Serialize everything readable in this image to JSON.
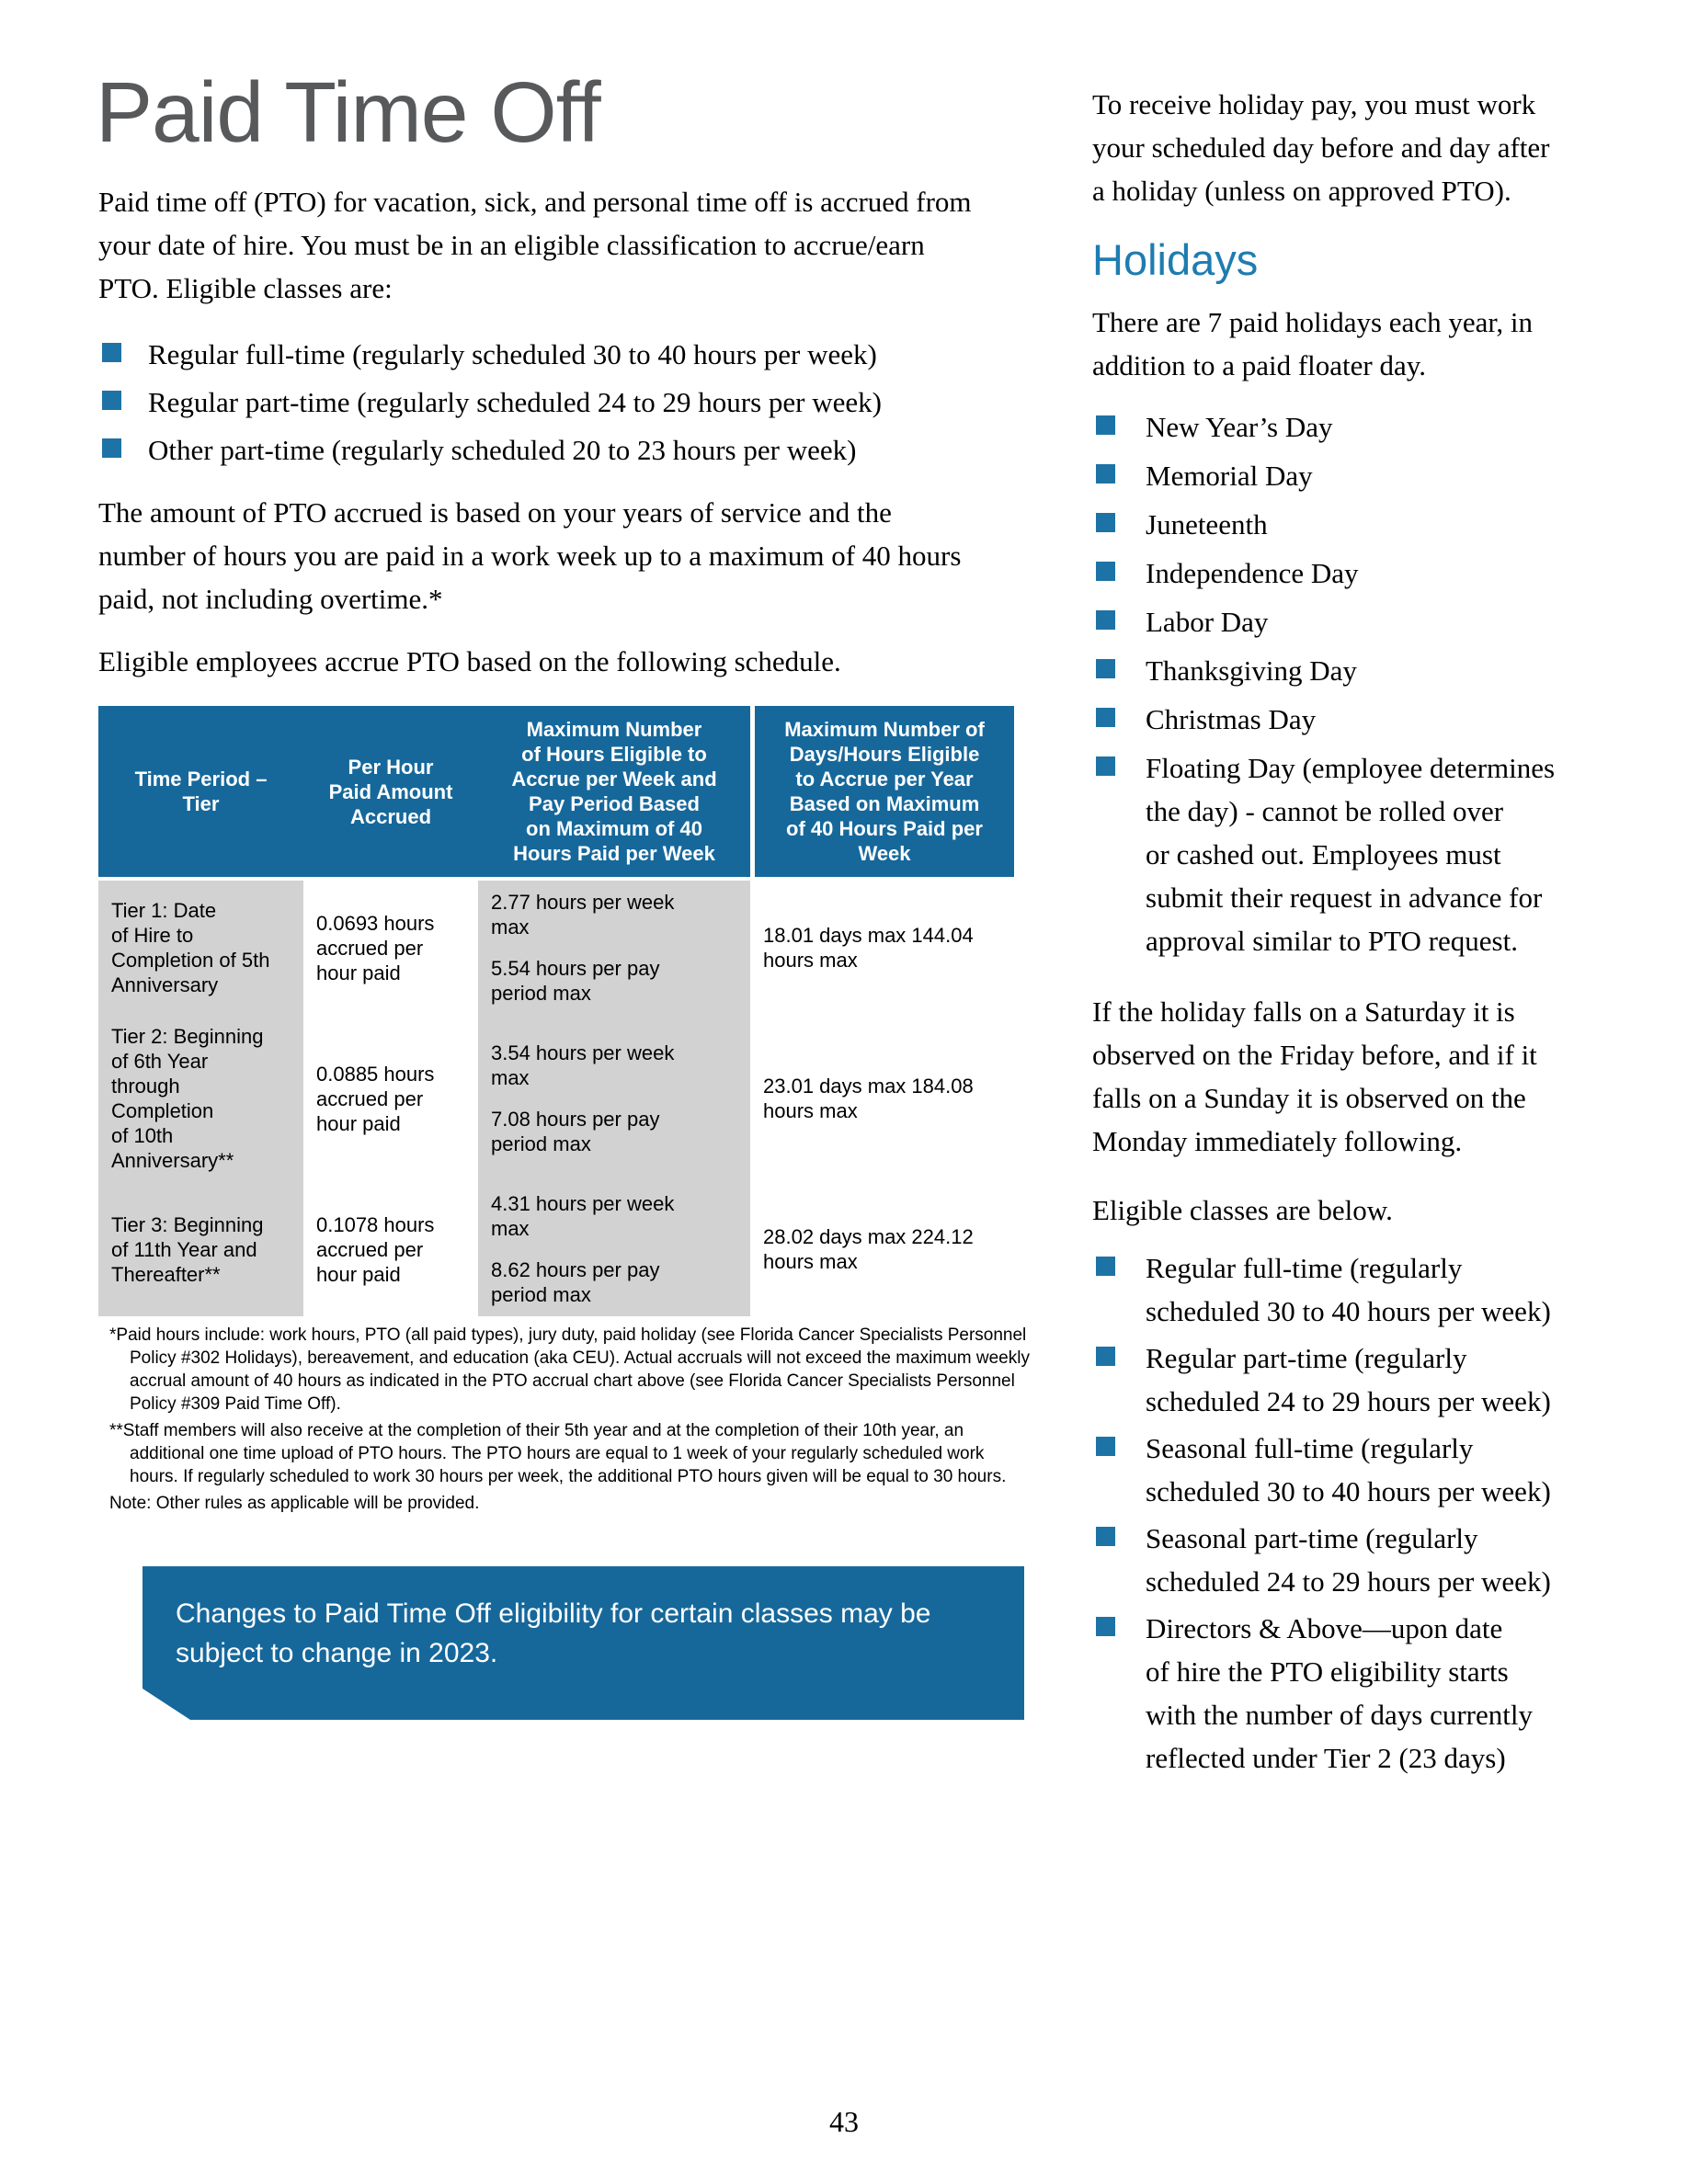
{
  "colors": {
    "accent_blue": "#16689b",
    "bullet_blue": "#1d73a6",
    "heading_blue": "#1e7cb0",
    "title_gray": "#58595b",
    "cell_gray": "#d2d2d2"
  },
  "page": {
    "number": "43"
  },
  "left": {
    "title": "Paid Time Off",
    "intro": "Paid time off (PTO) for vacation, sick, and personal time off is accrued from\nyour date of hire. You must be in an eligible classification to accrue/earn\nPTO. Eligible classes are:",
    "bullets": [
      {
        "text": "Regular full-time (regularly scheduled 30 to 40 hours per week)"
      },
      {
        "text": "Regular part-time (regularly scheduled 24 to 29 hours per week)"
      },
      {
        "text": "Other part-time (regularly scheduled 20 to 23 hours per week)"
      }
    ],
    "para2": "The amount of PTO accrued is based on your years of service and the\nnumber of hours you are paid in a work week up to a maximum of 40 hours\npaid, not including overtime.*",
    "para3": "Eligible employees accrue PTO based on the following schedule.",
    "table": {
      "headers": [
        "Time Period –\nTier",
        "Per Hour\nPaid Amount\nAccrued",
        "Maximum Number\nof Hours Eligible to\nAccrue per Week and\nPay Period Based\non Maximum of 40\nHours Paid per Week",
        "Maximum Number of\nDays/Hours Eligible\nto Accrue per Year\nBased on Maximum\nof 40 Hours Paid per\nWeek"
      ],
      "rows": [
        {
          "tier": "Tier 1: Date\nof Hire to\nCompletion of 5th\nAnniversary",
          "accrual": "0.0693 hours\naccrued per\nhour paid",
          "week_max": "2.77 hours per week\nmax",
          "period_max": "5.54 hours per pay\nperiod max",
          "year_max": "18.01 days max 144.04\nhours max"
        },
        {
          "tier": "Tier 2: Beginning\nof 6th Year\nthrough\nCompletion\nof 10th\nAnniversary**",
          "accrual": "0.0885 hours\naccrued per\nhour paid",
          "week_max": "3.54 hours per week\nmax",
          "period_max": "7.08 hours per pay\nperiod max",
          "year_max": "23.01 days max 184.08\nhours max"
        },
        {
          "tier": "Tier 3: Beginning\nof 11th Year and\nThereafter**",
          "accrual": "0.1078 hours\naccrued per\nhour paid",
          "week_max": "4.31 hours per week\nmax",
          "period_max": "8.62 hours per pay\nperiod max",
          "year_max": "28.02 days max 224.12\nhours max"
        }
      ]
    },
    "footnotes": [
      {
        "text": "*Paid hours include: work hours, PTO (all paid types), jury duty, paid holiday (see Florida Cancer Specialists Personnel\nPolicy #302 Holidays), bereavement, and education (aka CEU). Actual accruals will not exceed the maximum weekly\naccrual amount of 40 hours as indicated in the PTO accrual chart above (see Florida Cancer Specialists Personnel\nPolicy #309 Paid Time Off)."
      },
      {
        "text": "**Staff members will also receive at the completion of their 5th year and at the completion of their 10th year, an\nadditional one time upload of PTO hours. The PTO hours are equal to 1 week of your regularly scheduled work\nhours. If regularly scheduled to work 30 hours per week, the additional PTO hours given will be equal to 30 hours."
      },
      {
        "text": "Note: Other rules as applicable will be provided."
      }
    ],
    "callout": "Changes to Paid Time Off eligibility for certain classes may be\nsubject to change in 2023."
  },
  "right": {
    "intro": "To receive holiday pay, you must work\nyour scheduled day before and day after\na holiday (unless on approved PTO).",
    "holidays_heading": "Holidays",
    "holidays_intro": "There are 7 paid holidays each year, in\naddition to a paid floater day.",
    "holidays": [
      {
        "text": "New Year’s Day"
      },
      {
        "text": "Memorial Day"
      },
      {
        "text": "Juneteenth"
      },
      {
        "text": "Independence Day"
      },
      {
        "text": "Labor Day"
      },
      {
        "text": "Thanksgiving Day"
      },
      {
        "text": "Christmas Day"
      },
      {
        "text": "Floating Day (employee determines\nthe day) - cannot be rolled over\nor cashed out. Employees must\nsubmit their request in advance for\napproval similar to PTO request."
      }
    ],
    "observed_para": "If the holiday falls on a Saturday it is\nobserved on the Friday before, and if it\nfalls on a Sunday it is observed on the\nMonday immediately following.",
    "classes_intro": "Eligible classes are below.",
    "classes": [
      {
        "text": "Regular full-time (regularly\nscheduled 30 to 40 hours per week)"
      },
      {
        "text": "Regular part-time (regularly\nscheduled 24 to 29 hours per week)"
      },
      {
        "text": "Seasonal full-time (regularly\nscheduled 30 to 40 hours per week)"
      },
      {
        "text": "Seasonal part-time (regularly\nscheduled 24 to 29 hours per week)"
      },
      {
        "text": "Directors & Above—upon date\nof hire the PTO eligibility starts\nwith the number of days currently\nreflected under Tier 2 (23 days)"
      }
    ]
  }
}
